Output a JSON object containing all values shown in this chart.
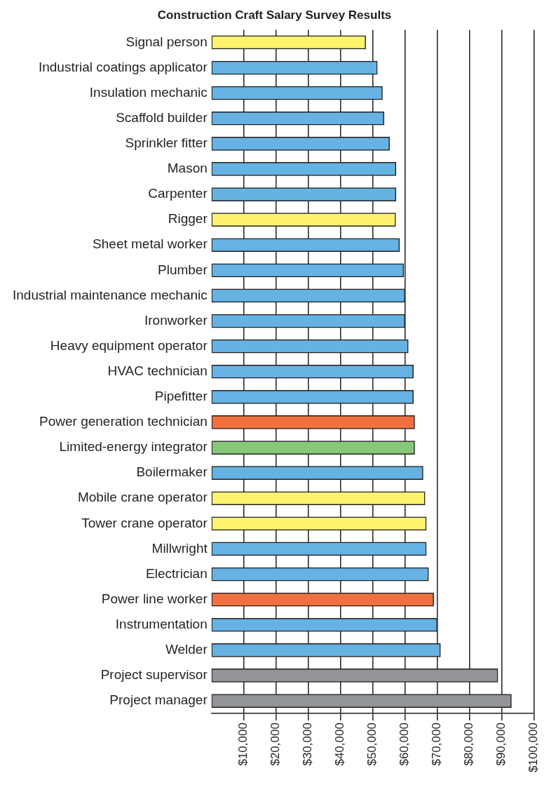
{
  "chart_data": {
    "type": "bar",
    "orientation": "horizontal",
    "title": "Construction Craft Salary Survey Results",
    "categories": [
      "Signal person",
      "Industrial coatings applicator",
      "Insulation mechanic",
      "Scaffold builder",
      "Sprinkler fitter",
      "Mason",
      "Carpenter",
      "Rigger",
      "Sheet metal worker",
      "Plumber",
      "Industrial maintenance mechanic",
      "Ironworker",
      "Heavy equipment operator",
      "HVAC technician",
      "Pipefitter",
      "Power generation technician",
      "Limited-energy integrator",
      "Boilermaker",
      "Mobile crane operator",
      "Tower crane operator",
      "Millwright",
      "Electrician",
      "Power line worker",
      "Instrumentation",
      "Welder",
      "Project supervisor",
      "Project manager"
    ],
    "values": [
      47800,
      51400,
      53000,
      53500,
      55200,
      57200,
      57200,
      57100,
      58300,
      59600,
      60000,
      60000,
      61000,
      62600,
      62600,
      63000,
      63000,
      65600,
      66200,
      66600,
      66600,
      67300,
      68900,
      70000,
      71000,
      88800,
      93000
    ],
    "colors": [
      "#fff36e",
      "#66b2e2",
      "#66b2e2",
      "#66b2e2",
      "#66b2e2",
      "#66b2e2",
      "#66b2e2",
      "#fff36e",
      "#66b2e2",
      "#66b2e2",
      "#66b2e2",
      "#66b2e2",
      "#66b2e2",
      "#66b2e2",
      "#66b2e2",
      "#f27040",
      "#86c878",
      "#66b2e2",
      "#fff36e",
      "#fff36e",
      "#66b2e2",
      "#66b2e2",
      "#f27040",
      "#66b2e2",
      "#66b2e2",
      "#939598",
      "#939598"
    ],
    "xlim": [
      0,
      100000
    ],
    "xticks": [
      {
        "value": 10000,
        "label": "$10,000"
      },
      {
        "value": 20000,
        "label": "$20,000"
      },
      {
        "value": 30000,
        "label": "$30,000"
      },
      {
        "value": 40000,
        "label": "$40,000"
      },
      {
        "value": 50000,
        "label": "$50,000"
      },
      {
        "value": 60000,
        "label": "$60,000"
      },
      {
        "value": 70000,
        "label": "$70,000"
      },
      {
        "value": 80000,
        "label": "$80,000"
      },
      {
        "value": 90000,
        "label": "$90,000"
      },
      {
        "value": 100000,
        "label": "$100,000"
      }
    ],
    "grid": "x",
    "legend": false
  }
}
